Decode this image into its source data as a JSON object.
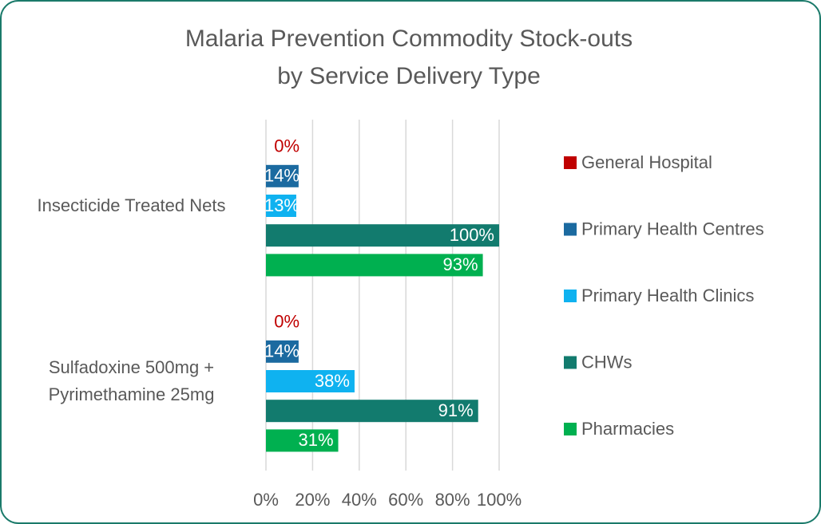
{
  "chart_data": {
    "type": "hbar",
    "title": [
      "Malaria Prevention Commodity Stock-outs",
      "by Service Delivery Type"
    ],
    "categories": [
      "Insecticide Treated Nets",
      "Sulfadoxine 500mg + Pyrimethamine 25mg"
    ],
    "series": [
      {
        "name": "General Hospital",
        "color": "#c00000",
        "values": [
          0,
          0
        ],
        "value_labels": [
          "0%",
          "0%"
        ]
      },
      {
        "name": "Primary Health Centres",
        "color": "#1b6aa0",
        "values": [
          14,
          14
        ],
        "value_labels": [
          "14%",
          "14%"
        ]
      },
      {
        "name": "Primary Health Clinics",
        "color": "#0fb2f0",
        "values": [
          13,
          38
        ],
        "value_labels": [
          "13%",
          "38%"
        ]
      },
      {
        "name": "CHWs",
        "color": "#127b6e",
        "values": [
          100,
          91
        ],
        "value_labels": [
          "100%",
          "91%"
        ]
      },
      {
        "name": "Pharmacies",
        "color": "#00b050",
        "values": [
          93,
          31
        ],
        "value_labels": [
          "93%",
          "31%"
        ]
      }
    ],
    "xlim": [
      0,
      100
    ],
    "xticks": [
      {
        "value": 0,
        "label": "0%"
      },
      {
        "value": 20,
        "label": "20%"
      },
      {
        "value": 40,
        "label": "40%"
      },
      {
        "value": 60,
        "label": "60%"
      },
      {
        "value": 80,
        "label": "80%"
      },
      {
        "value": 100,
        "label": "100%"
      }
    ],
    "grid": true,
    "legend": "right"
  }
}
